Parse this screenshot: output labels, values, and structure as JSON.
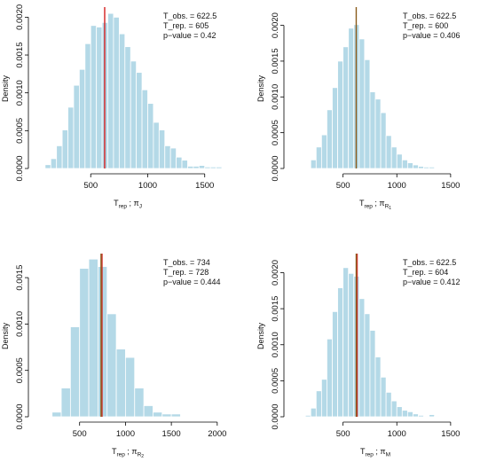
{
  "chart_data": [
    {
      "type": "bar",
      "panel": "top-left",
      "ylabel": "Density",
      "xlabel_main": "T",
      "xlabel_sub": "rep",
      "xlabel_tail": " ; π",
      "xlabel_tail_sub": "J",
      "bin_start": 100,
      "bin_width": 50,
      "values": [
        5e-05,
        0.00013,
        0.0003,
        0.00051,
        0.00081,
        0.0011,
        0.00131,
        0.00165,
        0.00189,
        0.00187,
        0.00193,
        0.00205,
        0.002,
        0.00178,
        0.00161,
        0.00142,
        0.00127,
        0.00104,
        0.00086,
        0.00061,
        0.00051,
        0.0003,
        0.00027,
        0.00015,
        0.00011,
        3e-05,
        3e-05,
        4e-05,
        2e-05,
        2e-05,
        2e-05
      ],
      "xlim": [
        0,
        1650
      ],
      "ylim": [
        0,
        0.00211
      ],
      "xticks": [
        500,
        1000,
        1500
      ],
      "yticks": [
        0.0,
        0.0005,
        0.001,
        0.0015,
        0.002
      ],
      "ytick_labels": [
        "0.0000",
        "0.0005",
        "0.0010",
        "0.0015",
        "0.0020"
      ],
      "observed_line": {
        "x": 622.5,
        "color": "#d42020"
      },
      "annotations": [
        "T_obs. = 622.5",
        "T_rep. = 605",
        "p−value = 0.42"
      ]
    },
    {
      "type": "bar",
      "panel": "top-right",
      "ylabel": "Density",
      "xlabel_main": "T",
      "xlabel_sub": "rep",
      "xlabel_tail": " ; π",
      "xlabel_tail_sub": "R",
      "xlabel_tail_sub2": "1",
      "bin_start": 200,
      "bin_width": 50,
      "values": [
        0.00012,
        0.0003,
        0.00047,
        0.00082,
        0.00113,
        0.0015,
        0.0017,
        0.00196,
        0.00201,
        0.00181,
        0.00152,
        0.00107,
        0.00097,
        0.00078,
        0.00046,
        0.0003,
        0.0002,
        0.00012,
        8e-05,
        5e-05,
        3e-05,
        2e-05,
        2e-05
      ],
      "xlim": [
        0,
        1600
      ],
      "ylim": [
        0,
        0.00223
      ],
      "xticks": [
        500,
        1000,
        1500
      ],
      "yticks": [
        0.0,
        0.0005,
        0.001,
        0.0015,
        0.002
      ],
      "ytick_labels": [
        "0.0000",
        "0.0005",
        "0.0010",
        "0.0015",
        "0.0020"
      ],
      "observed_line": {
        "x": 622.5,
        "color": "#8a5a1a"
      },
      "annotations": [
        "T_obs. = 622.5",
        "T_rep. = 600",
        "p−value = 0.406"
      ]
    },
    {
      "type": "bar",
      "panel": "bottom-left",
      "ylabel": "Density",
      "xlabel_main": "T",
      "xlabel_sub": "rep",
      "xlabel_tail": " ; π",
      "xlabel_tail_sub": "R",
      "xlabel_tail_sub2": "2",
      "bin_start": 200,
      "bin_width": 100,
      "values": [
        5e-05,
        0.00031,
        0.00097,
        0.0016,
        0.0017,
        0.00162,
        0.00111,
        0.00073,
        0.00064,
        0.00031,
        0.00012,
        5e-05,
        3e-05,
        3e-05
      ],
      "xlim": [
        0,
        2050
      ],
      "ylim": [
        0,
        0.00174
      ],
      "xticks": [
        500,
        1000,
        1500,
        2000
      ],
      "yticks": [
        0.0,
        0.0005,
        0.001,
        0.0015
      ],
      "ytick_labels": [
        "0.0000",
        "0.0005",
        "0.0010",
        "0.0015"
      ],
      "observed_line": {
        "x": 734,
        "color": "#8a5a1a",
        "overlay": "#d42020"
      },
      "annotations": [
        "T_obs. = 734",
        "T_rep. = 728",
        "p−value = 0.444"
      ]
    },
    {
      "type": "bar",
      "panel": "bottom-right",
      "ylabel": "Density",
      "xlabel_main": "T",
      "xlabel_sub": "rep",
      "xlabel_tail": " ; π",
      "xlabel_tail_sub": "M",
      "bin_start": 150,
      "bin_width": 50,
      "values": [
        2e-05,
        0.00012,
        0.00036,
        0.00052,
        0.00108,
        0.00146,
        0.00179,
        0.00207,
        0.00199,
        0.00195,
        0.00164,
        0.00143,
        0.0012,
        0.00083,
        0.00055,
        0.00034,
        0.00022,
        0.00014,
        9e-05,
        7e-05,
        4e-05,
        2e-05,
        1e-05,
        3e-05,
        1e-05
      ],
      "xlim": [
        0,
        1600
      ],
      "ylim": [
        0,
        0.00224
      ],
      "xticks": [
        500,
        1000,
        1500
      ],
      "yticks": [
        0.0,
        0.0005,
        0.001,
        0.0015,
        0.002
      ],
      "ytick_labels": [
        "0.0000",
        "0.0005",
        "0.0010",
        "0.0015",
        "0.0020"
      ],
      "observed_line": {
        "x": 622.5,
        "color": "#8a5a1a",
        "overlay": "#d42020"
      },
      "annotations": [
        "T_obs. = 622.5",
        "T_rep. = 604",
        "p−value = 0.412"
      ]
    }
  ]
}
